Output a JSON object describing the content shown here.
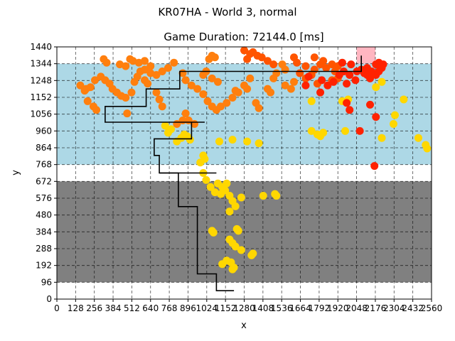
{
  "figure": {
    "suptitle": "KR07HA - World 3, normal"
  },
  "chart_data": {
    "type": "scatter",
    "title": "Game Duration: 72144.0 [ms]",
    "xlabel": "x",
    "ylabel": "y",
    "xlim": [
      0,
      2560
    ],
    "ylim": [
      0,
      1440
    ],
    "xticks": [
      0,
      128,
      256,
      384,
      512,
      640,
      768,
      896,
      1024,
      1152,
      1280,
      1408,
      1536,
      1664,
      1792,
      1920,
      2048,
      2176,
      2304,
      2432,
      2560
    ],
    "yticks": [
      0,
      96,
      192,
      288,
      384,
      480,
      576,
      672,
      768,
      864,
      960,
      1056,
      1152,
      1248,
      1344,
      1440
    ],
    "grid": true,
    "colors": {
      "gray_band": "#808080",
      "blue_band": "#add8e6",
      "pink_region": "#ffb6c1",
      "yellow": "#ffd700",
      "orange": "#ff7f0e",
      "dark_orange": "#ff5500",
      "red": "#ff2200",
      "path": "#000000"
    },
    "regions": [
      {
        "name": "gray_band",
        "x": [
          0,
          2560
        ],
        "y": [
          96,
          672
        ]
      },
      {
        "name": "blue_band",
        "x": [
          0,
          2560
        ],
        "y": [
          768,
          1344
        ]
      },
      {
        "name": "pink_region",
        "x": [
          2048,
          2176
        ],
        "y": [
          1344,
          1440
        ]
      }
    ],
    "path": [
      [
        1210,
        48
      ],
      [
        1090,
        48
      ],
      [
        1090,
        144
      ],
      [
        960,
        144
      ],
      [
        960,
        528
      ],
      [
        830,
        528
      ],
      [
        830,
        720
      ],
      [
        700,
        720
      ],
      [
        700,
        820
      ],
      [
        665,
        820
      ],
      [
        665,
        915
      ],
      [
        920,
        915
      ],
      [
        920,
        1010
      ],
      [
        1010,
        1010
      ],
      [
        920,
        1010
      ],
      [
        330,
        1010
      ],
      [
        330,
        1100
      ],
      [
        610,
        1100
      ],
      [
        610,
        1200
      ],
      [
        840,
        1200
      ],
      [
        840,
        1300
      ],
      [
        2080,
        1300
      ],
      [
        2080,
        1390
      ]
    ],
    "path_branch": [
      [
        700,
        720
      ],
      [
        1090,
        720
      ]
    ],
    "series": [
      {
        "color_key": "yellow",
        "points": [
          [
            980,
            780
          ],
          [
            1000,
            720
          ],
          [
            1020,
            680
          ],
          [
            1050,
            640
          ],
          [
            1080,
            610
          ],
          [
            1120,
            600
          ],
          [
            1150,
            620
          ],
          [
            1180,
            590
          ],
          [
            1200,
            560
          ],
          [
            1220,
            530
          ],
          [
            1180,
            500
          ],
          [
            1260,
            580
          ],
          [
            1410,
            590
          ],
          [
            1490,
            600
          ],
          [
            1500,
            590
          ],
          [
            1060,
            390
          ],
          [
            1070,
            380
          ],
          [
            1230,
            400
          ],
          [
            1240,
            390
          ],
          [
            1180,
            340
          ],
          [
            1200,
            320
          ],
          [
            1220,
            300
          ],
          [
            1260,
            280
          ],
          [
            1330,
            250
          ],
          [
            1340,
            260
          ],
          [
            1130,
            200
          ],
          [
            1160,
            220
          ],
          [
            1190,
            210
          ],
          [
            1200,
            170
          ],
          [
            1210,
            180
          ],
          [
            1100,
            660
          ],
          [
            1130,
            640
          ],
          [
            1160,
            660
          ],
          [
            1000,
            820
          ],
          [
            1010,
            800
          ],
          [
            820,
            900
          ],
          [
            850,
            920
          ],
          [
            870,
            940
          ],
          [
            890,
            930
          ],
          [
            910,
            910
          ],
          [
            760,
            950
          ],
          [
            780,
            970
          ],
          [
            740,
            990
          ],
          [
            1300,
            900
          ],
          [
            1380,
            890
          ],
          [
            1110,
            900
          ],
          [
            1200,
            910
          ],
          [
            1780,
            940
          ],
          [
            1800,
            930
          ],
          [
            1820,
            950
          ],
          [
            1740,
            960
          ],
          [
            1970,
            960
          ],
          [
            2220,
            920
          ],
          [
            2300,
            1000
          ],
          [
            2310,
            1050
          ],
          [
            2370,
            1140
          ],
          [
            2470,
            920
          ],
          [
            2520,
            880
          ],
          [
            2530,
            860
          ],
          [
            1950,
            1130
          ],
          [
            1990,
            1140
          ],
          [
            2180,
            1210
          ],
          [
            2220,
            1240
          ],
          [
            1740,
            1130
          ]
        ]
      },
      {
        "color_key": "orange",
        "points": [
          [
            160,
            1220
          ],
          [
            190,
            1190
          ],
          [
            200,
            1200
          ],
          [
            230,
            1210
          ],
          [
            210,
            1130
          ],
          [
            250,
            1100
          ],
          [
            270,
            1080
          ],
          [
            260,
            1250
          ],
          [
            300,
            1270
          ],
          [
            330,
            1250
          ],
          [
            360,
            1230
          ],
          [
            380,
            1200
          ],
          [
            410,
            1180
          ],
          [
            440,
            1160
          ],
          [
            470,
            1150
          ],
          [
            510,
            1180
          ],
          [
            530,
            1240
          ],
          [
            550,
            1270
          ],
          [
            570,
            1300
          ],
          [
            600,
            1310
          ],
          [
            640,
            1290
          ],
          [
            680,
            1280
          ],
          [
            720,
            1300
          ],
          [
            760,
            1320
          ],
          [
            430,
            1340
          ],
          [
            470,
            1330
          ],
          [
            320,
            1370
          ],
          [
            340,
            1350
          ],
          [
            500,
            1370
          ],
          [
            520,
            1360
          ],
          [
            560,
            1350
          ],
          [
            600,
            1360
          ],
          [
            640,
            1330
          ],
          [
            800,
            1350
          ],
          [
            860,
            1290
          ],
          [
            880,
            1250
          ],
          [
            920,
            1220
          ],
          [
            960,
            1200
          ],
          [
            1000,
            1170
          ],
          [
            1030,
            1130
          ],
          [
            1060,
            1100
          ],
          [
            1090,
            1080
          ],
          [
            1120,
            1100
          ],
          [
            1160,
            1120
          ],
          [
            1200,
            1150
          ],
          [
            1240,
            1180
          ],
          [
            1280,
            1220
          ],
          [
            1320,
            1260
          ],
          [
            1000,
            1280
          ],
          [
            1020,
            1300
          ],
          [
            1060,
            1260
          ],
          [
            1100,
            1240
          ],
          [
            1040,
            1370
          ],
          [
            1060,
            1390
          ],
          [
            1080,
            1380
          ],
          [
            880,
            1060
          ],
          [
            900,
            1020
          ],
          [
            940,
            1000
          ],
          [
            860,
            1020
          ],
          [
            820,
            1000
          ],
          [
            720,
            1100
          ],
          [
            700,
            1140
          ],
          [
            680,
            1180
          ],
          [
            1220,
            1190
          ],
          [
            1300,
            1200
          ],
          [
            1360,
            1120
          ],
          [
            1380,
            1090
          ],
          [
            1440,
            1200
          ],
          [
            1460,
            1180
          ],
          [
            1560,
            1220
          ],
          [
            1600,
            1200
          ],
          [
            1620,
            1240
          ],
          [
            1480,
            1260
          ],
          [
            1500,
            1290
          ],
          [
            1540,
            1340
          ],
          [
            1560,
            1310
          ],
          [
            480,
            1060
          ],
          [
            600,
            1250
          ],
          [
            620,
            1230
          ]
        ]
      },
      {
        "color_key": "dark_orange",
        "points": [
          [
            1320,
            1400
          ],
          [
            1340,
            1410
          ],
          [
            1370,
            1390
          ],
          [
            1400,
            1380
          ],
          [
            1440,
            1360
          ],
          [
            1480,
            1340
          ],
          [
            1280,
            1420
          ],
          [
            1300,
            1370
          ],
          [
            1620,
            1380
          ],
          [
            1640,
            1350
          ],
          [
            1700,
            1330
          ],
          [
            1760,
            1310
          ],
          [
            1800,
            1340
          ],
          [
            1840,
            1320
          ],
          [
            1880,
            1340
          ],
          [
            1920,
            1330
          ],
          [
            1900,
            1300
          ],
          [
            1660,
            1290
          ],
          [
            1700,
            1260
          ],
          [
            1740,
            1280
          ],
          [
            1780,
            1230
          ],
          [
            1880,
            1250
          ],
          [
            1920,
            1260
          ],
          [
            1760,
            1380
          ],
          [
            1820,
            1360
          ]
        ]
      },
      {
        "color_key": "red",
        "points": [
          [
            1800,
            1180
          ],
          [
            1810,
            1250
          ],
          [
            1850,
            1220
          ],
          [
            1890,
            1240
          ],
          [
            1930,
            1280
          ],
          [
            1960,
            1300
          ],
          [
            2000,
            1280
          ],
          [
            2050,
            1300
          ],
          [
            2080,
            1310
          ],
          [
            2100,
            1290
          ],
          [
            2120,
            1320
          ],
          [
            2150,
            1300
          ],
          [
            2180,
            1280
          ],
          [
            2200,
            1300
          ],
          [
            2220,
            1320
          ],
          [
            2230,
            1340
          ],
          [
            2180,
            1340
          ],
          [
            2120,
            1280
          ],
          [
            2140,
            1260
          ],
          [
            2010,
            1340
          ],
          [
            1950,
            1350
          ],
          [
            1980,
            1120
          ],
          [
            2000,
            1080
          ],
          [
            2070,
            960
          ],
          [
            2140,
            1110
          ],
          [
            2180,
            1040
          ],
          [
            2170,
            760
          ],
          [
            1720,
            1270
          ],
          [
            1700,
            1220
          ],
          [
            1980,
            1230
          ],
          [
            2040,
            1250
          ],
          [
            2200,
            1350
          ]
        ]
      }
    ]
  }
}
